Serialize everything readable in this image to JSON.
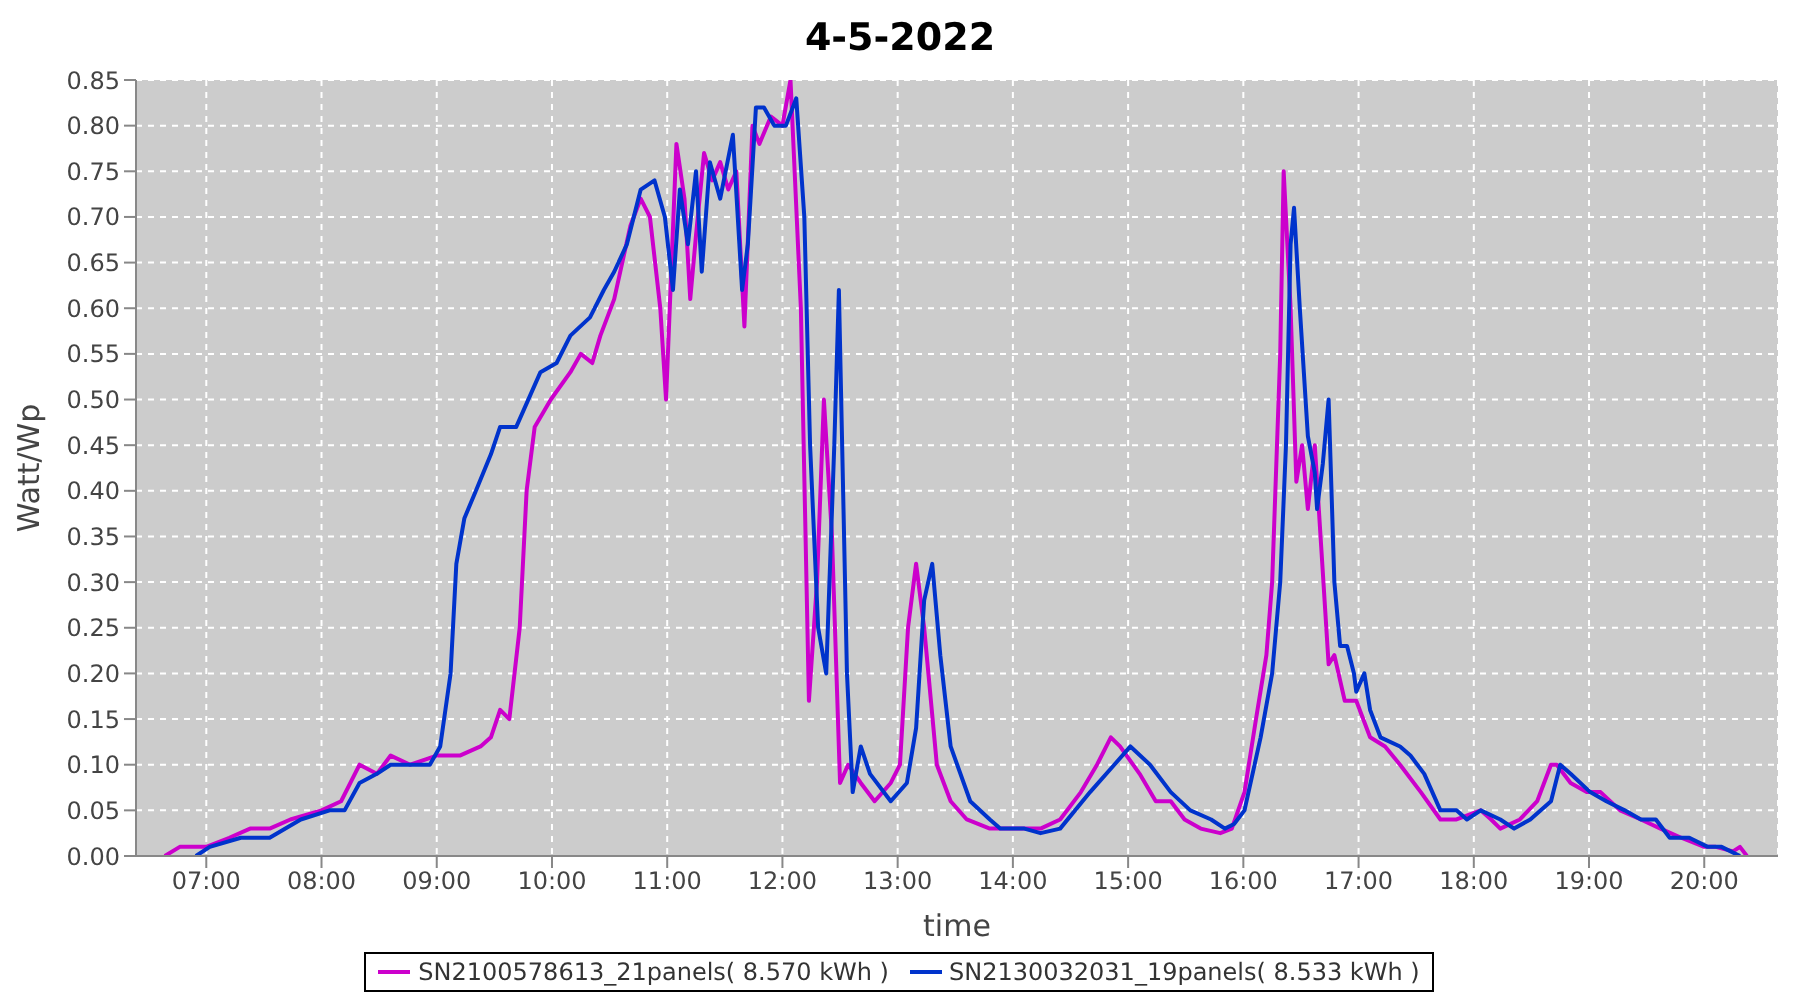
{
  "chart_data": {
    "type": "line",
    "title": "4-5-2022",
    "xlabel": "time",
    "ylabel": "Watt/Wp",
    "xlim": [
      6.39,
      20.64
    ],
    "xticks": [
      {
        "value": 7,
        "label": "07:00"
      },
      {
        "value": 8,
        "label": "08:00"
      },
      {
        "value": 9,
        "label": "09:00"
      },
      {
        "value": 10,
        "label": "10:00"
      },
      {
        "value": 11,
        "label": "11:00"
      },
      {
        "value": 12,
        "label": "12:00"
      },
      {
        "value": 13,
        "label": "13:00"
      },
      {
        "value": 14,
        "label": "14:00"
      },
      {
        "value": 15,
        "label": "15:00"
      },
      {
        "value": 16,
        "label": "16:00"
      },
      {
        "value": 17,
        "label": "17:00"
      },
      {
        "value": 18,
        "label": "18:00"
      },
      {
        "value": 19,
        "label": "19:00"
      },
      {
        "value": 20,
        "label": "20:00"
      }
    ],
    "ylim": [
      0,
      0.85
    ],
    "yticks": [
      {
        "value": 0,
        "label": "0.00"
      },
      {
        "value": 0.05,
        "label": "0.05"
      },
      {
        "value": 0.1,
        "label": "0.10"
      },
      {
        "value": 0.15,
        "label": "0.15"
      },
      {
        "value": 0.2,
        "label": "0.20"
      },
      {
        "value": 0.25,
        "label": "0.25"
      },
      {
        "value": 0.3,
        "label": "0.30"
      },
      {
        "value": 0.35,
        "label": "0.35"
      },
      {
        "value": 0.4,
        "label": "0.40"
      },
      {
        "value": 0.45,
        "label": "0.45"
      },
      {
        "value": 0.5,
        "label": "0.50"
      },
      {
        "value": 0.55,
        "label": "0.55"
      },
      {
        "value": 0.6,
        "label": "0.60"
      },
      {
        "value": 0.65,
        "label": "0.65"
      },
      {
        "value": 0.7,
        "label": "0.70"
      },
      {
        "value": 0.75,
        "label": "0.75"
      },
      {
        "value": 0.8,
        "label": "0.80"
      },
      {
        "value": 0.85,
        "label": "0.85"
      }
    ],
    "grid": true,
    "legend": "bottom",
    "marker": "none",
    "line_style": "solid",
    "series": [
      {
        "name": "SN2100578613_21panels( 8.570 kWh )",
        "color": "#cc00cc",
        "x": [
          6.64,
          6.77,
          7.0,
          7.2,
          7.38,
          7.55,
          7.73,
          8.0,
          8.17,
          8.33,
          8.48,
          8.6,
          8.77,
          9.0,
          9.2,
          9.38,
          9.47,
          9.55,
          9.63,
          9.72,
          9.78,
          9.85,
          9.99,
          10.16,
          10.25,
          10.35,
          10.42,
          10.54,
          10.68,
          10.77,
          10.85,
          10.94,
          10.99,
          11.08,
          11.15,
          11.2,
          11.25,
          11.32,
          11.39,
          11.46,
          11.53,
          11.6,
          11.67,
          11.74,
          11.8,
          11.9,
          12.0,
          12.07,
          12.16,
          12.23,
          12.3,
          12.36,
          12.43,
          12.5,
          12.57,
          12.68,
          12.8,
          12.94,
          13.02,
          13.09,
          13.16,
          13.23,
          13.34,
          13.46,
          13.6,
          13.8,
          13.98,
          14.24,
          14.41,
          14.59,
          14.73,
          14.85,
          14.93,
          15.1,
          15.24,
          15.37,
          15.49,
          15.63,
          15.8,
          15.9,
          16.01,
          16.11,
          16.2,
          16.25,
          16.32,
          16.35,
          16.41,
          16.46,
          16.51,
          16.56,
          16.62,
          16.67,
          16.74,
          16.79,
          16.88,
          16.98,
          17.1,
          17.23,
          17.36,
          17.54,
          17.71,
          17.85,
          18.06,
          18.15,
          18.23,
          18.4,
          18.55,
          18.67,
          18.72,
          18.84,
          18.98,
          19.1,
          19.27,
          19.45,
          19.62,
          19.8,
          20.0,
          20.1,
          20.25,
          20.31,
          20.37
        ],
        "values": [
          0,
          0.01,
          0.01,
          0.02,
          0.03,
          0.03,
          0.04,
          0.05,
          0.06,
          0.1,
          0.09,
          0.11,
          0.1,
          0.11,
          0.11,
          0.12,
          0.13,
          0.16,
          0.15,
          0.25,
          0.4,
          0.47,
          0.5,
          0.53,
          0.55,
          0.54,
          0.57,
          0.61,
          0.69,
          0.72,
          0.7,
          0.6,
          0.5,
          0.78,
          0.72,
          0.61,
          0.68,
          0.77,
          0.74,
          0.76,
          0.73,
          0.75,
          0.58,
          0.8,
          0.78,
          0.81,
          0.8,
          0.85,
          0.6,
          0.17,
          0.3,
          0.5,
          0.35,
          0.08,
          0.1,
          0.08,
          0.06,
          0.08,
          0.1,
          0.25,
          0.32,
          0.25,
          0.1,
          0.06,
          0.04,
          0.03,
          0.03,
          0.03,
          0.04,
          0.07,
          0.1,
          0.13,
          0.12,
          0.09,
          0.06,
          0.06,
          0.04,
          0.03,
          0.025,
          0.03,
          0.07,
          0.15,
          0.22,
          0.3,
          0.55,
          0.75,
          0.6,
          0.41,
          0.45,
          0.38,
          0.45,
          0.35,
          0.21,
          0.22,
          0.17,
          0.17,
          0.13,
          0.12,
          0.1,
          0.07,
          0.04,
          0.04,
          0.05,
          0.04,
          0.03,
          0.04,
          0.06,
          0.1,
          0.1,
          0.08,
          0.07,
          0.07,
          0.05,
          0.04,
          0.03,
          0.02,
          0.01,
          0.01,
          0.005,
          0.01,
          0
        ]
      },
      {
        "name": "SN2130032031_19panels( 8.533 kWh )",
        "color": "#0033cc",
        "x": [
          6.91,
          7.03,
          7.3,
          7.55,
          7.82,
          8.07,
          8.2,
          8.33,
          8.48,
          8.6,
          8.77,
          8.94,
          9.03,
          9.12,
          9.17,
          9.24,
          9.34,
          9.47,
          9.55,
          9.69,
          9.76,
          9.9,
          10.04,
          10.16,
          10.33,
          10.45,
          10.54,
          10.65,
          10.77,
          10.89,
          10.98,
          11.05,
          11.11,
          11.18,
          11.25,
          11.3,
          11.37,
          11.46,
          11.57,
          11.65,
          11.7,
          11.77,
          11.84,
          11.93,
          12.03,
          12.12,
          12.19,
          12.24,
          12.31,
          12.38,
          12.45,
          12.49,
          12.56,
          12.61,
          12.68,
          12.76,
          12.94,
          13.08,
          13.16,
          13.23,
          13.3,
          13.37,
          13.46,
          13.63,
          13.8,
          13.89,
          14.1,
          14.24,
          14.41,
          14.67,
          14.88,
          15.02,
          15.19,
          15.37,
          15.54,
          15.72,
          15.84,
          15.92,
          16.01,
          16.15,
          16.25,
          16.32,
          16.37,
          16.41,
          16.44,
          16.49,
          16.56,
          16.62,
          16.64,
          16.69,
          16.74,
          16.79,
          16.84,
          16.9,
          16.96,
          16.98,
          17.05,
          17.1,
          17.19,
          17.36,
          17.45,
          17.57,
          17.71,
          17.85,
          17.94,
          18.06,
          18.23,
          18.35,
          18.49,
          18.67,
          18.75,
          18.84,
          19.01,
          19.15,
          19.31,
          19.45,
          19.58,
          19.7,
          19.87,
          20.03,
          20.15,
          20.31
        ],
        "values": [
          0,
          0.01,
          0.02,
          0.02,
          0.04,
          0.05,
          0.05,
          0.08,
          0.09,
          0.1,
          0.1,
          0.1,
          0.12,
          0.2,
          0.32,
          0.37,
          0.4,
          0.44,
          0.47,
          0.47,
          0.49,
          0.53,
          0.54,
          0.57,
          0.59,
          0.62,
          0.64,
          0.67,
          0.73,
          0.74,
          0.7,
          0.62,
          0.73,
          0.67,
          0.75,
          0.64,
          0.76,
          0.72,
          0.79,
          0.62,
          0.67,
          0.82,
          0.82,
          0.8,
          0.8,
          0.83,
          0.7,
          0.45,
          0.25,
          0.2,
          0.45,
          0.62,
          0.2,
          0.07,
          0.12,
          0.09,
          0.06,
          0.08,
          0.14,
          0.28,
          0.32,
          0.22,
          0.12,
          0.06,
          0.04,
          0.03,
          0.03,
          0.025,
          0.03,
          0.07,
          0.1,
          0.12,
          0.1,
          0.07,
          0.05,
          0.04,
          0.03,
          0.035,
          0.05,
          0.13,
          0.2,
          0.3,
          0.45,
          0.67,
          0.71,
          0.6,
          0.46,
          0.42,
          0.38,
          0.43,
          0.5,
          0.3,
          0.23,
          0.23,
          0.2,
          0.18,
          0.2,
          0.16,
          0.13,
          0.12,
          0.11,
          0.09,
          0.05,
          0.05,
          0.04,
          0.05,
          0.04,
          0.03,
          0.04,
          0.06,
          0.1,
          0.09,
          0.07,
          0.06,
          0.05,
          0.04,
          0.04,
          0.02,
          0.02,
          0.01,
          0.01,
          0
        ]
      }
    ]
  }
}
